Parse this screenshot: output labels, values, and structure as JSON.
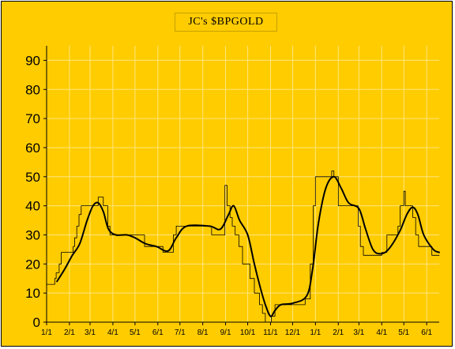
{
  "colors": {
    "background": "#ffcc00",
    "grid": "#ffe680",
    "raw_series": "#000000",
    "smoothed_series": "#000000"
  },
  "chart_data": {
    "type": "line",
    "title": "JC's $BPGOLD",
    "xlabel": "",
    "ylabel": "",
    "ylim": [
      0,
      95
    ],
    "yticks": [
      0,
      10,
      20,
      30,
      40,
      50,
      60,
      70,
      80,
      90
    ],
    "xlim": [
      "2006-01-01",
      "2007-06-18"
    ],
    "xtick_labels": [
      "1/1",
      "2/1",
      "3/1",
      "4/1",
      "5/1",
      "6/1",
      "7/1",
      "8/1",
      "9/1",
      "10/1",
      "11/1",
      "12/1",
      "1/1",
      "2/1",
      "3/1",
      "4/1",
      "5/1",
      "6/1"
    ],
    "xtick_dates": [
      "2006-01-01",
      "2006-02-01",
      "2006-03-01",
      "2006-04-01",
      "2006-05-01",
      "2006-06-01",
      "2006-07-01",
      "2006-08-01",
      "2006-09-01",
      "2006-10-01",
      "2006-11-01",
      "2006-12-01",
      "2007-01-01",
      "2007-02-01",
      "2007-03-01",
      "2007-04-01",
      "2007-05-01",
      "2007-06-01"
    ],
    "grid": true,
    "series": [
      {
        "style": "step",
        "width": "thin",
        "points": [
          [
            "2006-01-01",
            13
          ],
          [
            "2006-01-12",
            15
          ],
          [
            "2006-01-14",
            17
          ],
          [
            "2006-01-18",
            20
          ],
          [
            "2006-01-21",
            24
          ],
          [
            "2006-02-03",
            24
          ],
          [
            "2006-02-06",
            26
          ],
          [
            "2006-02-08",
            29
          ],
          [
            "2006-02-11",
            33
          ],
          [
            "2006-02-14",
            37
          ],
          [
            "2006-02-17",
            40
          ],
          [
            "2006-03-09",
            40
          ],
          [
            "2006-03-12",
            43
          ],
          [
            "2006-03-19",
            40
          ],
          [
            "2006-03-25",
            33
          ],
          [
            "2006-03-28",
            30
          ],
          [
            "2006-05-11",
            30
          ],
          [
            "2006-05-14",
            26
          ],
          [
            "2006-06-04",
            26
          ],
          [
            "2006-06-08",
            24
          ],
          [
            "2006-06-18",
            24
          ],
          [
            "2006-06-22",
            30
          ],
          [
            "2006-06-26",
            33
          ],
          [
            "2006-08-11",
            33
          ],
          [
            "2006-08-13",
            30
          ],
          [
            "2006-08-29",
            30
          ],
          [
            "2006-08-31",
            47
          ],
          [
            "2006-09-03",
            40
          ],
          [
            "2006-09-07",
            36
          ],
          [
            "2006-09-10",
            33
          ],
          [
            "2006-09-14",
            30
          ],
          [
            "2006-09-19",
            26
          ],
          [
            "2006-09-24",
            20
          ],
          [
            "2006-10-04",
            15
          ],
          [
            "2006-10-10",
            10
          ],
          [
            "2006-10-17",
            6
          ],
          [
            "2006-10-21",
            3
          ],
          [
            "2006-10-25",
            0
          ],
          [
            "2006-10-30",
            0
          ],
          [
            "2006-11-02",
            2
          ],
          [
            "2006-11-07",
            6
          ],
          [
            "2006-12-11",
            6
          ],
          [
            "2006-12-18",
            8
          ],
          [
            "2006-12-25",
            20
          ],
          [
            "2006-12-29",
            40
          ],
          [
            "2007-01-01",
            50
          ],
          [
            "2007-01-20",
            50
          ],
          [
            "2007-01-23",
            52
          ],
          [
            "2007-01-26",
            50
          ],
          [
            "2007-02-01",
            40
          ],
          [
            "2007-02-24",
            40
          ],
          [
            "2007-02-28",
            33
          ],
          [
            "2007-03-03",
            26
          ],
          [
            "2007-03-07",
            23
          ],
          [
            "2007-03-29",
            23
          ],
          [
            "2007-04-01",
            24
          ],
          [
            "2007-04-08",
            30
          ],
          [
            "2007-04-23",
            33
          ],
          [
            "2007-04-26",
            40
          ],
          [
            "2007-05-01",
            45
          ],
          [
            "2007-05-03",
            40
          ],
          [
            "2007-05-13",
            36
          ],
          [
            "2007-05-17",
            30
          ],
          [
            "2007-05-21",
            26
          ],
          [
            "2007-06-08",
            23
          ],
          [
            "2007-06-18",
            23
          ]
        ]
      },
      {
        "style": "smooth",
        "width": "thick",
        "points": [
          [
            "2006-01-15",
            14
          ],
          [
            "2006-01-25",
            18
          ],
          [
            "2006-02-05",
            23
          ],
          [
            "2006-02-15",
            27
          ],
          [
            "2006-02-25",
            35
          ],
          [
            "2006-03-05",
            40
          ],
          [
            "2006-03-12",
            41
          ],
          [
            "2006-03-19",
            38
          ],
          [
            "2006-03-26",
            32
          ],
          [
            "2006-04-05",
            30
          ],
          [
            "2006-04-20",
            30
          ],
          [
            "2006-05-01",
            29
          ],
          [
            "2006-05-15",
            27
          ],
          [
            "2006-05-30",
            26
          ],
          [
            "2006-06-15",
            24.5
          ],
          [
            "2006-06-26",
            29
          ],
          [
            "2006-07-10",
            33
          ],
          [
            "2006-08-10",
            33
          ],
          [
            "2006-08-25",
            32
          ],
          [
            "2006-09-05",
            37
          ],
          [
            "2006-09-12",
            40
          ],
          [
            "2006-09-20",
            35
          ],
          [
            "2006-10-01",
            30
          ],
          [
            "2006-10-10",
            20
          ],
          [
            "2006-10-18",
            12
          ],
          [
            "2006-10-25",
            6
          ],
          [
            "2006-11-01",
            2
          ],
          [
            "2006-11-07",
            4
          ],
          [
            "2006-11-15",
            6
          ],
          [
            "2006-12-01",
            6.5
          ],
          [
            "2006-12-20",
            9
          ],
          [
            "2006-12-28",
            18
          ],
          [
            "2007-01-05",
            34
          ],
          [
            "2007-01-15",
            46
          ],
          [
            "2007-01-26",
            50
          ],
          [
            "2007-02-05",
            46
          ],
          [
            "2007-02-15",
            41
          ],
          [
            "2007-03-01",
            39
          ],
          [
            "2007-03-10",
            32
          ],
          [
            "2007-03-20",
            25
          ],
          [
            "2007-03-30",
            23.5
          ],
          [
            "2007-04-10",
            25
          ],
          [
            "2007-04-25",
            31
          ],
          [
            "2007-05-05",
            37
          ],
          [
            "2007-05-13",
            39.5
          ],
          [
            "2007-05-20",
            37
          ],
          [
            "2007-05-28",
            30
          ],
          [
            "2007-06-10",
            25
          ],
          [
            "2007-06-18",
            24
          ]
        ]
      }
    ]
  }
}
